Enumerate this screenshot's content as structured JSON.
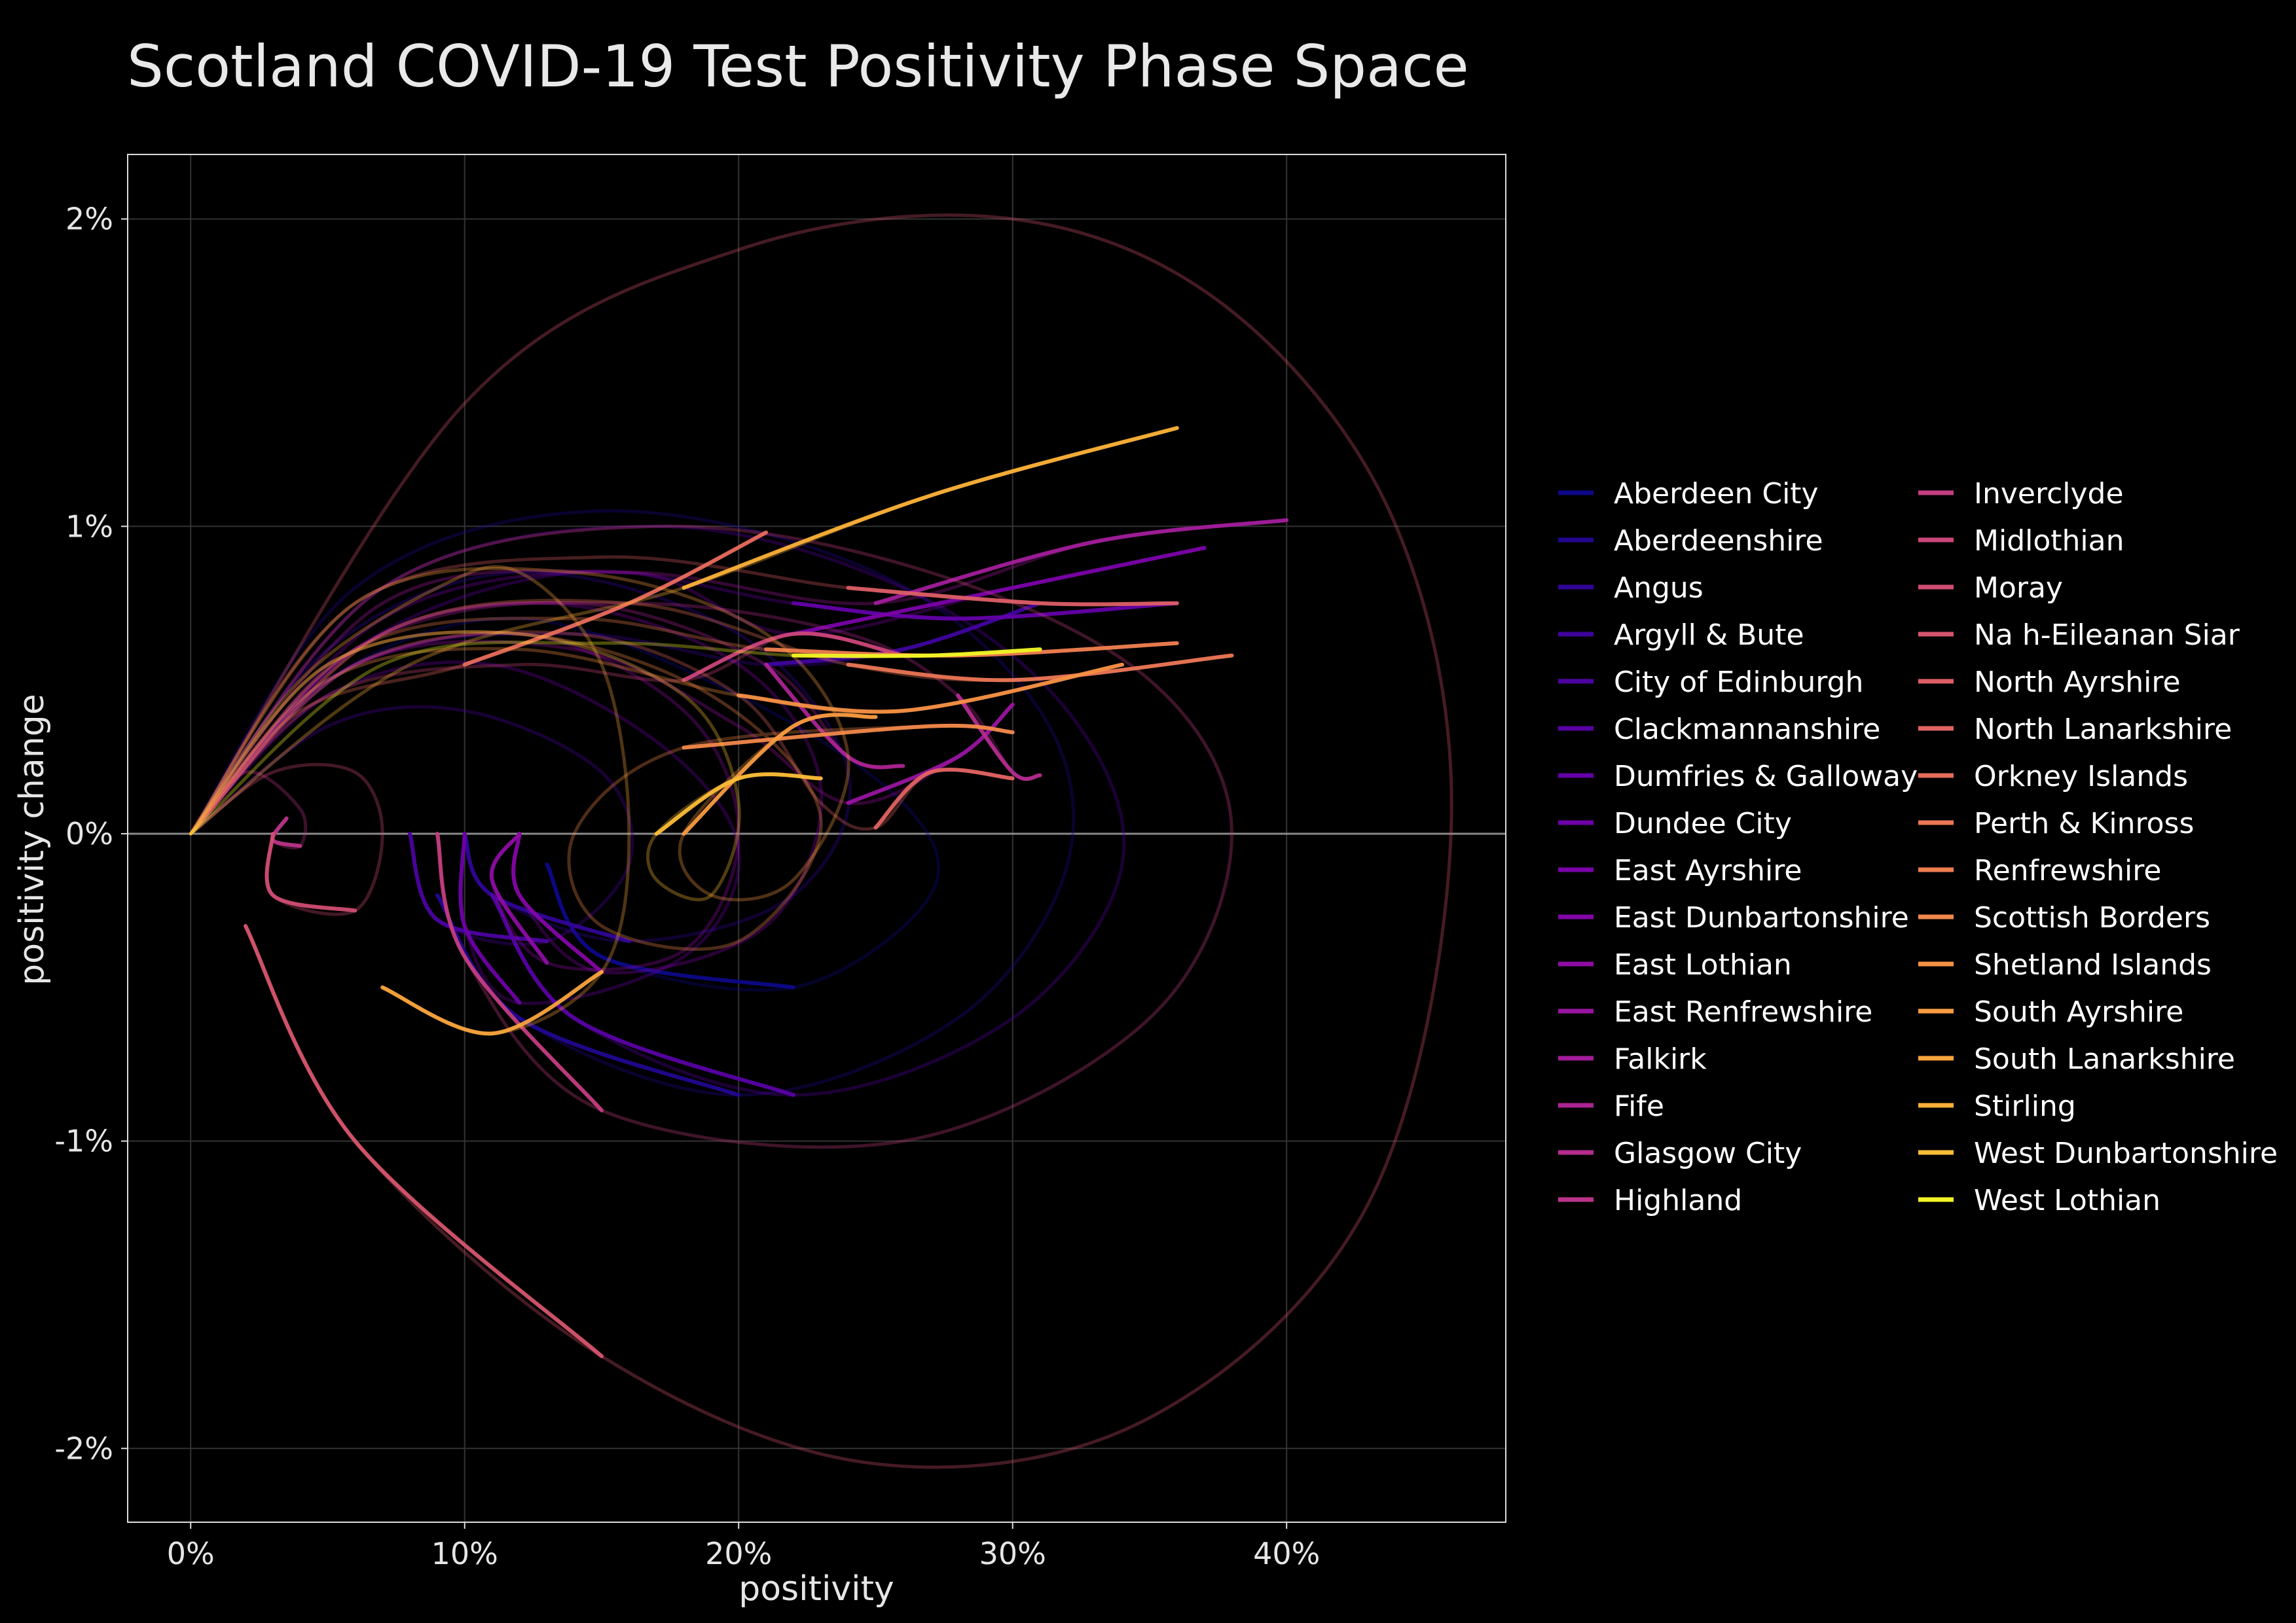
{
  "chart_data": {
    "type": "line",
    "title": "Scotland COVID-19 Test Positivity Phase Space",
    "xlabel": "positivity",
    "ylabel": "positivity change",
    "xlim": [
      -0.023,
      0.48
    ],
    "ylim": [
      -0.0224,
      0.0221
    ],
    "x_ticks": [
      {
        "value": 0.0,
        "label": "0%"
      },
      {
        "value": 0.1,
        "label": "10%"
      },
      {
        "value": 0.2,
        "label": "20%"
      },
      {
        "value": 0.3,
        "label": "30%"
      },
      {
        "value": 0.4,
        "label": "40%"
      }
    ],
    "y_ticks": [
      {
        "value": 0.02,
        "label": "2%"
      },
      {
        "value": 0.01,
        "label": "1%"
      },
      {
        "value": 0.0,
        "label": "0%"
      },
      {
        "value": -0.01,
        "label": "-1%"
      },
      {
        "value": -0.02,
        "label": "-2%"
      }
    ],
    "grid": true,
    "legend_position": "right",
    "background": "#000000",
    "series": [
      {
        "name": "Aberdeen City",
        "color": "#0d0887",
        "points": [
          [
            0.0,
            0.0
          ],
          [
            0.05,
            0.005
          ],
          [
            0.12,
            0.007
          ],
          [
            0.2,
            0.0045
          ],
          [
            0.26,
            0.001
          ],
          [
            0.27,
            -0.002
          ],
          [
            0.22,
            -0.005
          ],
          [
            0.15,
            -0.004
          ],
          [
            0.13,
            -0.001
          ]
        ]
      },
      {
        "name": "Aberdeenshire",
        "color": "#220690",
        "points": [
          [
            0.0,
            0.0
          ],
          [
            0.06,
            0.008
          ],
          [
            0.15,
            0.0105
          ],
          [
            0.25,
            0.0085
          ],
          [
            0.31,
            0.004
          ],
          [
            0.32,
            -0.001
          ],
          [
            0.28,
            -0.006
          ],
          [
            0.2,
            -0.0085
          ],
          [
            0.12,
            -0.006
          ],
          [
            0.09,
            -0.002
          ]
        ]
      },
      {
        "name": "Angus",
        "color": "#310597",
        "points": [
          [
            0.0,
            0.0
          ],
          [
            0.05,
            0.006
          ],
          [
            0.12,
            0.0085
          ],
          [
            0.2,
            0.0065
          ],
          [
            0.24,
            0.002
          ],
          [
            0.22,
            -0.002
          ],
          [
            0.16,
            -0.0035
          ],
          [
            0.11,
            -0.002
          ],
          [
            0.1,
            0.0
          ]
        ]
      },
      {
        "name": "Argyll & Bute",
        "color": "#3e049c",
        "points": [
          [
            0.0,
            0.0
          ],
          [
            0.06,
            0.0055
          ],
          [
            0.14,
            0.0065
          ],
          [
            0.21,
            0.0055
          ],
          [
            0.26,
            0.006
          ],
          [
            0.31,
            0.0075
          ]
        ]
      },
      {
        "name": "City of Edinburgh",
        "color": "#4c02a1",
        "points": [
          [
            0.0,
            0.0
          ],
          [
            0.05,
            0.0035
          ],
          [
            0.1,
            0.004
          ],
          [
            0.15,
            0.002
          ],
          [
            0.16,
            -0.001
          ],
          [
            0.13,
            -0.0035
          ],
          [
            0.09,
            -0.0028
          ],
          [
            0.08,
            0.0
          ]
        ]
      },
      {
        "name": "Clackmannanshire",
        "color": "#5801a4",
        "points": [
          [
            0.0,
            0.0
          ],
          [
            0.07,
            0.008
          ],
          [
            0.17,
            0.01
          ],
          [
            0.26,
            0.008
          ],
          [
            0.32,
            0.004
          ],
          [
            0.34,
            -0.001
          ],
          [
            0.3,
            -0.006
          ],
          [
            0.22,
            -0.0085
          ],
          [
            0.14,
            -0.006
          ],
          [
            0.11,
            -0.002
          ]
        ]
      },
      {
        "name": "Dumfries & Galloway",
        "color": "#6300a7",
        "points": [
          [
            0.0,
            0.0
          ],
          [
            0.06,
            0.006
          ],
          [
            0.14,
            0.0085
          ],
          [
            0.22,
            0.0075
          ],
          [
            0.28,
            0.007
          ],
          [
            0.36,
            0.0075
          ]
        ]
      },
      {
        "name": "Dundee City",
        "color": "#6e00a8",
        "points": [
          [
            0.0,
            0.0
          ],
          [
            0.05,
            0.0045
          ],
          [
            0.11,
            0.0055
          ],
          [
            0.17,
            0.003
          ],
          [
            0.2,
            -0.0005
          ],
          [
            0.18,
            -0.004
          ],
          [
            0.12,
            -0.0055
          ],
          [
            0.1,
            -0.003
          ],
          [
            0.1,
            0.0
          ]
        ]
      },
      {
        "name": "East Ayrshire",
        "color": "#7a02a8",
        "points": [
          [
            0.0,
            0.0
          ],
          [
            0.07,
            0.007
          ],
          [
            0.16,
            0.0085
          ],
          [
            0.22,
            0.0065
          ],
          [
            0.3,
            0.008
          ],
          [
            0.37,
            0.0093
          ]
        ]
      },
      {
        "name": "East Dunbartonshire",
        "color": "#8405a7",
        "points": [
          [
            0.0,
            0.0
          ],
          [
            0.06,
            0.006
          ],
          [
            0.13,
            0.0075
          ],
          [
            0.2,
            0.0055
          ],
          [
            0.23,
            0.0015
          ],
          [
            0.21,
            -0.003
          ],
          [
            0.15,
            -0.0045
          ],
          [
            0.12,
            -0.002
          ],
          [
            0.12,
            0.0
          ]
        ]
      },
      {
        "name": "East Lothian",
        "color": "#8e0ca4",
        "points": [
          [
            0.0,
            0.0
          ],
          [
            0.05,
            0.005
          ],
          [
            0.12,
            0.0065
          ],
          [
            0.18,
            0.004
          ],
          [
            0.2,
            0.0
          ],
          [
            0.18,
            -0.0038
          ],
          [
            0.13,
            -0.0042
          ],
          [
            0.11,
            -0.0015
          ],
          [
            0.12,
            0.0
          ]
        ]
      },
      {
        "name": "East Renfrewshire",
        "color": "#9814a0",
        "points": [
          [
            0.0,
            0.0
          ],
          [
            0.06,
            0.0055
          ],
          [
            0.14,
            0.006
          ],
          [
            0.2,
            0.0035
          ],
          [
            0.24,
            0.001
          ],
          [
            0.28,
            0.0025
          ],
          [
            0.3,
            0.0042
          ]
        ]
      },
      {
        "name": "Falkirk",
        "color": "#a21d9a",
        "points": [
          [
            0.0,
            0.0
          ],
          [
            0.07,
            0.0075
          ],
          [
            0.16,
            0.0085
          ],
          [
            0.25,
            0.0075
          ],
          [
            0.33,
            0.0095
          ],
          [
            0.4,
            0.0102
          ]
        ]
      },
      {
        "name": "Fife",
        "color": "#ab2494",
        "points": [
          [
            0.0,
            0.0
          ],
          [
            0.06,
            0.006
          ],
          [
            0.14,
            0.0075
          ],
          [
            0.21,
            0.0055
          ],
          [
            0.24,
            0.0025
          ],
          [
            0.26,
            0.0022
          ]
        ]
      },
      {
        "name": "Glasgow City",
        "color": "#b32c8e",
        "points": [
          [
            0.0,
            0.0
          ],
          [
            0.07,
            0.0065
          ],
          [
            0.16,
            0.0075
          ],
          [
            0.24,
            0.0065
          ],
          [
            0.28,
            0.0045
          ],
          [
            0.3,
            0.002
          ],
          [
            0.31,
            0.0019
          ]
        ]
      },
      {
        "name": "Highland",
        "color": "#bb3488",
        "points": [
          [
            0.0,
            0.0
          ],
          [
            0.02,
            0.002
          ],
          [
            0.04,
            0.0008
          ],
          [
            0.04,
            -0.0004
          ],
          [
            0.03,
            -0.0002
          ],
          [
            0.035,
            0.0005
          ]
        ]
      },
      {
        "name": "Inverclyde",
        "color": "#c33d80",
        "points": [
          [
            0.0,
            0.0
          ],
          [
            0.07,
            0.008
          ],
          [
            0.17,
            0.01
          ],
          [
            0.27,
            0.0085
          ],
          [
            0.35,
            0.005
          ],
          [
            0.38,
            0.0
          ],
          [
            0.35,
            -0.006
          ],
          [
            0.26,
            -0.01
          ],
          [
            0.15,
            -0.009
          ],
          [
            0.1,
            -0.004
          ],
          [
            0.09,
            0.0
          ]
        ]
      },
      {
        "name": "Midlothian",
        "color": "#ca457a",
        "points": [
          [
            0.0,
            0.0
          ],
          [
            0.05,
            0.0045
          ],
          [
            0.12,
            0.0055
          ],
          [
            0.18,
            0.005
          ],
          [
            0.22,
            0.0065
          ],
          [
            0.26,
            0.0058
          ]
        ]
      },
      {
        "name": "Moray",
        "color": "#d04d73",
        "points": [
          [
            0.0,
            0.0
          ],
          [
            0.03,
            0.002
          ],
          [
            0.06,
            0.002
          ],
          [
            0.07,
            0.0
          ],
          [
            0.06,
            -0.0025
          ],
          [
            0.03,
            -0.002
          ],
          [
            0.03,
            0.0
          ]
        ]
      },
      {
        "name": "Na h-Eileanan Siar",
        "color": "#d6556d",
        "points": [
          [
            0.0,
            0.0
          ],
          [
            0.1,
            0.014
          ],
          [
            0.2,
            0.019
          ],
          [
            0.3,
            0.02
          ],
          [
            0.38,
            0.017
          ],
          [
            0.44,
            0.01
          ],
          [
            0.46,
            0.0
          ],
          [
            0.43,
            -0.012
          ],
          [
            0.35,
            -0.019
          ],
          [
            0.25,
            -0.0205
          ],
          [
            0.15,
            -0.017
          ],
          [
            0.06,
            -0.01
          ],
          [
            0.02,
            -0.003
          ]
        ]
      },
      {
        "name": "North Ayrshire",
        "color": "#dc5e66",
        "points": [
          [
            0.0,
            0.0
          ],
          [
            0.06,
            0.0075
          ],
          [
            0.15,
            0.009
          ],
          [
            0.24,
            0.008
          ],
          [
            0.31,
            0.0075
          ],
          [
            0.36,
            0.0075
          ]
        ]
      },
      {
        "name": "North Lanarkshire",
        "color": "#e16462",
        "points": [
          [
            0.0,
            0.0
          ],
          [
            0.06,
            0.0055
          ],
          [
            0.14,
            0.0065
          ],
          [
            0.2,
            0.0045
          ],
          [
            0.23,
            0.001
          ],
          [
            0.25,
            0.0002
          ],
          [
            0.27,
            0.002
          ],
          [
            0.3,
            0.0018
          ]
        ]
      },
      {
        "name": "Orkney Islands",
        "color": "#e66c5c",
        "points": [
          [
            0.0,
            0.0
          ],
          [
            0.04,
            0.004
          ],
          [
            0.1,
            0.0055
          ],
          [
            0.16,
            0.0075
          ],
          [
            0.21,
            0.0098
          ]
        ]
      },
      {
        "name": "Perth & Kinross",
        "color": "#eb7655",
        "points": [
          [
            0.0,
            0.0
          ],
          [
            0.07,
            0.0065
          ],
          [
            0.16,
            0.0075
          ],
          [
            0.24,
            0.0055
          ],
          [
            0.3,
            0.005
          ],
          [
            0.38,
            0.0058
          ]
        ]
      },
      {
        "name": "Renfrewshire",
        "color": "#ee7e4f",
        "points": [
          [
            0.0,
            0.0
          ],
          [
            0.06,
            0.006
          ],
          [
            0.14,
            0.007
          ],
          [
            0.21,
            0.006
          ],
          [
            0.28,
            0.0058
          ],
          [
            0.36,
            0.0062
          ]
        ]
      },
      {
        "name": "Scottish Borders",
        "color": "#f2884b",
        "points": [
          [
            0.0,
            0.0
          ],
          [
            0.05,
            0.0055
          ],
          [
            0.12,
            0.0065
          ],
          [
            0.19,
            0.0045
          ],
          [
            0.23,
            0.0005
          ],
          [
            0.2,
            -0.0035
          ],
          [
            0.15,
            -0.003
          ],
          [
            0.14,
            0.0
          ],
          [
            0.18,
            0.0028
          ],
          [
            0.27,
            0.0035
          ],
          [
            0.3,
            0.0033
          ]
        ]
      },
      {
        "name": "Shetland Islands",
        "color": "#f59145",
        "points": [
          [
            0.0,
            0.0
          ],
          [
            0.05,
            0.005
          ],
          [
            0.12,
            0.006
          ],
          [
            0.2,
            0.0045
          ],
          [
            0.26,
            0.004
          ],
          [
            0.34,
            0.0055
          ]
        ]
      },
      {
        "name": "South Ayrshire",
        "color": "#f89b40",
        "points": [
          [
            0.0,
            0.0
          ],
          [
            0.06,
            0.0075
          ],
          [
            0.14,
            0.0085
          ],
          [
            0.21,
            0.0065
          ],
          [
            0.24,
            0.0025
          ],
          [
            0.22,
            -0.0015
          ],
          [
            0.19,
            -0.002
          ],
          [
            0.18,
            0.0
          ],
          [
            0.22,
            0.0035
          ],
          [
            0.25,
            0.0038
          ]
        ]
      },
      {
        "name": "South Lanarkshire",
        "color": "#f9a53d",
        "points": [
          [
            0.0,
            0.0
          ],
          [
            0.04,
            0.005
          ],
          [
            0.09,
            0.008
          ],
          [
            0.12,
            0.0085
          ],
          [
            0.15,
            0.0055
          ],
          [
            0.16,
            0.0
          ],
          [
            0.15,
            -0.0045
          ],
          [
            0.11,
            -0.0065
          ],
          [
            0.07,
            -0.005
          ]
        ]
      },
      {
        "name": "Stirling",
        "color": "#fbb139",
        "points": [
          [
            0.0,
            0.0
          ],
          [
            0.08,
            0.0055
          ],
          [
            0.18,
            0.008
          ],
          [
            0.27,
            0.011
          ],
          [
            0.36,
            0.0132
          ]
        ]
      },
      {
        "name": "West Dunbartonshire",
        "color": "#fcbd37",
        "points": [
          [
            0.0,
            0.0
          ],
          [
            0.05,
            0.0055
          ],
          [
            0.12,
            0.0065
          ],
          [
            0.18,
            0.0045
          ],
          [
            0.2,
            0.001
          ],
          [
            0.19,
            -0.002
          ],
          [
            0.17,
            -0.0015
          ],
          [
            0.17,
            0.0
          ],
          [
            0.2,
            0.0018
          ],
          [
            0.23,
            0.0018
          ]
        ]
      },
      {
        "name": "West Lothian",
        "color": "#f1f525",
        "points": [
          [
            0.0,
            0.0
          ],
          [
            0.07,
            0.0055
          ],
          [
            0.15,
            0.0062
          ],
          [
            0.22,
            0.0058
          ],
          [
            0.27,
            0.0058
          ],
          [
            0.31,
            0.006
          ]
        ]
      }
    ]
  }
}
